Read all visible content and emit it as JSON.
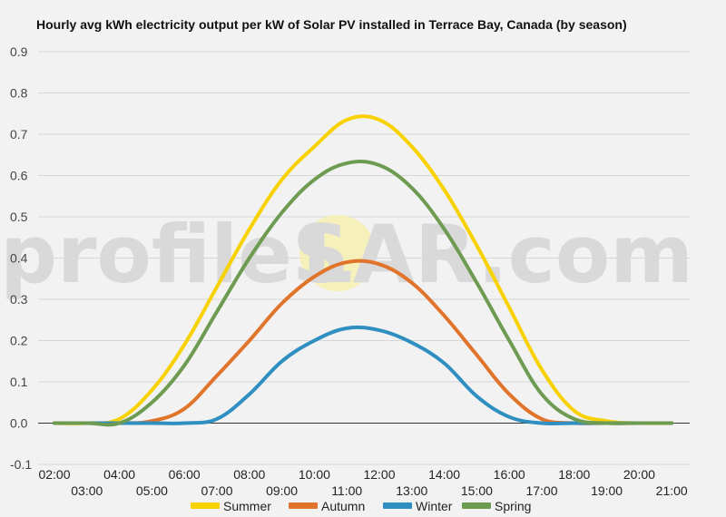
{
  "watermark": {
    "left": "profileS",
    "right": "LAR.com"
  },
  "chart_data": {
    "type": "line",
    "title": "Hourly avg kWh electricity output per kW of Solar PV installed in Terrace Bay, Canada (by season)",
    "xlabel": "",
    "ylabel": "",
    "ylim": [
      -0.1,
      0.9
    ],
    "yticks": [
      "-0.1",
      "0.0",
      "0.1",
      "0.2",
      "0.3",
      "0.4",
      "0.5",
      "0.6",
      "0.7",
      "0.8",
      "0.9"
    ],
    "x": [
      "02:00",
      "03:00",
      "04:00",
      "05:00",
      "06:00",
      "07:00",
      "08:00",
      "09:00",
      "10:00",
      "11:00",
      "12:00",
      "13:00",
      "14:00",
      "15:00",
      "16:00",
      "17:00",
      "18:00",
      "19:00",
      "20:00",
      "21:00"
    ],
    "grid": true,
    "legend_position": "bottom",
    "series": [
      {
        "name": "Summer",
        "color": "#f7d100",
        "values": [
          0.0,
          0.0,
          0.01,
          0.08,
          0.19,
          0.33,
          0.47,
          0.59,
          0.67,
          0.735,
          0.735,
          0.67,
          0.565,
          0.43,
          0.28,
          0.13,
          0.03,
          0.005,
          0.0,
          0.0
        ]
      },
      {
        "name": "Autumn",
        "color": "#e0742a",
        "values": [
          0.0,
          0.0,
          0.0,
          0.005,
          0.035,
          0.115,
          0.2,
          0.29,
          0.355,
          0.39,
          0.385,
          0.34,
          0.26,
          0.165,
          0.07,
          0.01,
          0.0,
          0.0,
          0.0,
          0.0
        ]
      },
      {
        "name": "Winter",
        "color": "#2f8fc0",
        "values": [
          0.0,
          0.0,
          0.0,
          0.0,
          0.0,
          0.01,
          0.07,
          0.15,
          0.2,
          0.23,
          0.225,
          0.195,
          0.145,
          0.065,
          0.015,
          0.0,
          0.0,
          0.0,
          0.0,
          0.0
        ]
      },
      {
        "name": "Spring",
        "color": "#6e9b52",
        "values": [
          0.0,
          0.0,
          0.0,
          0.05,
          0.14,
          0.27,
          0.4,
          0.51,
          0.59,
          0.63,
          0.625,
          0.57,
          0.47,
          0.34,
          0.2,
          0.07,
          0.01,
          0.0,
          0.0,
          0.0
        ]
      }
    ]
  }
}
